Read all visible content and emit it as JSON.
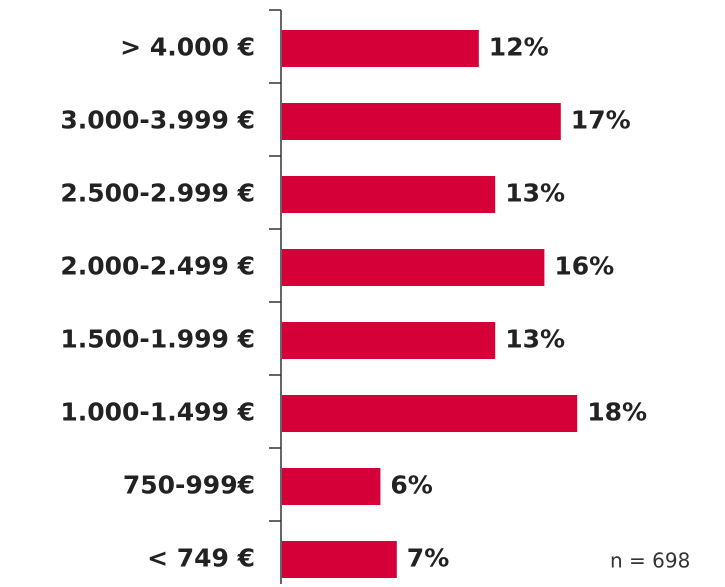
{
  "chart_data": {
    "type": "hbar",
    "categories": [
      "> 4.000 €",
      "3.000-3.999 €",
      "2.500-2.999 €",
      "2.000-2.499 €",
      "1.500-1.999 €",
      "1.000-1.499 €",
      "750-999€",
      "< 749 €"
    ],
    "values": [
      12,
      17,
      13,
      16,
      13,
      18,
      6,
      7
    ],
    "value_labels": [
      "12%",
      "17%",
      "13%",
      "16%",
      "13%",
      "18%",
      "6%",
      "7%"
    ],
    "color": "#d50037",
    "annotation": "n = 698"
  }
}
